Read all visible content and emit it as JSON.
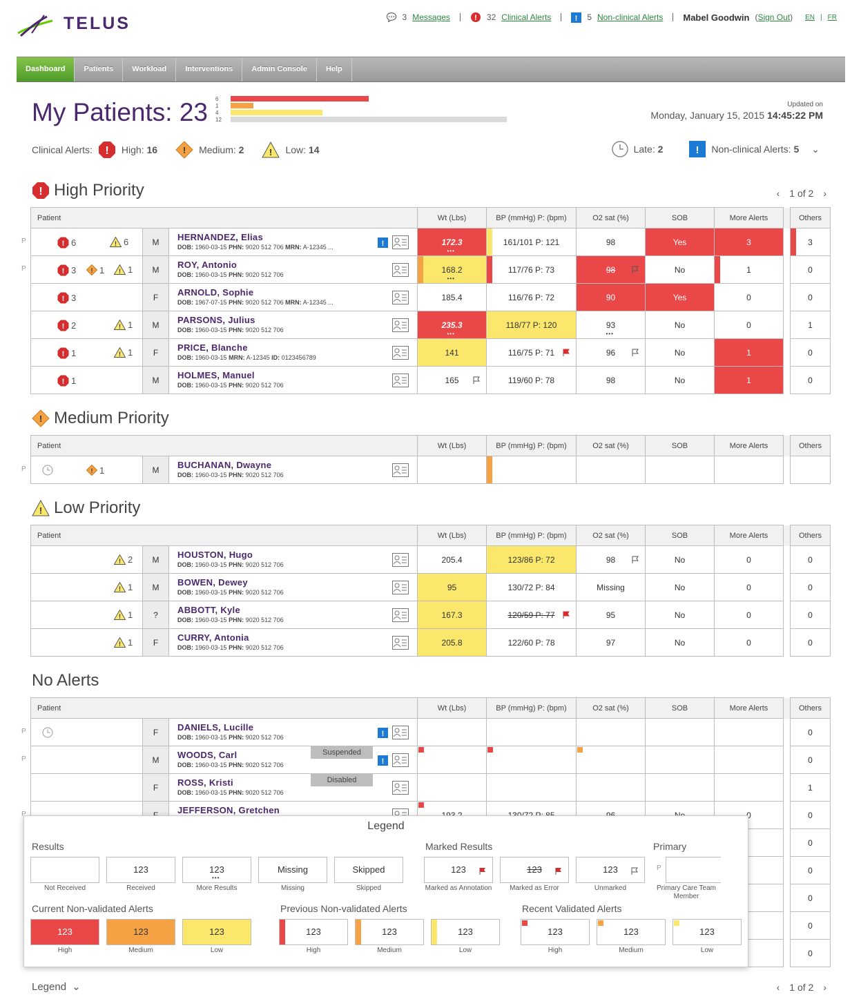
{
  "brand": {
    "name": "TELUS"
  },
  "topnav": {
    "messages_count": "3",
    "messages": "Messages",
    "clinical_count": "32",
    "clinical": "Clinical Alerts",
    "nonclinical_count": "5",
    "nonclinical": "Non-clinical Alerts",
    "user": "Mabel Goodwin",
    "signout": "Sign Out",
    "lang_en": "EN",
    "lang_fr": "FR"
  },
  "nav": [
    "Dashboard",
    "Patients",
    "Workload",
    "Interventions",
    "Admin Console",
    "Help"
  ],
  "title": "My Patients: 23",
  "summary": [
    {
      "label": "6",
      "value": 6,
      "color": "#ea4848"
    },
    {
      "label": "1",
      "value": 1,
      "color": "#f5a244"
    },
    {
      "label": "4",
      "value": 4,
      "color": "#fae76c"
    },
    {
      "label": "12",
      "value": 12,
      "color": "#d9d9d9"
    }
  ],
  "updated": {
    "label": "Updated on",
    "date": "Monday, January 15, 2015",
    "time": "14:45:22 PM"
  },
  "alerts": {
    "label": "Clinical Alerts:",
    "high_label": "High:",
    "high": "16",
    "medium_label": "Medium:",
    "medium": "2",
    "low_label": "Low:",
    "low": "14",
    "late_label": "Late:",
    "late": "2",
    "nonclinical_label": "Non-clinical Alerts:",
    "nonclinical": "5"
  },
  "headers": {
    "patient": "Patient",
    "wt": "Wt (Lbs)",
    "bp": "BP (mmHg) P: (bpm)",
    "o2": "O2 sat (%)",
    "sob": "SOB",
    "more": "More Alerts",
    "others": "Others"
  },
  "sections": {
    "high": "High Priority",
    "medium": "Medium Priority",
    "low": "Low Priority",
    "none": "No Alerts",
    "pager": "1 of 2"
  },
  "high_rows": [
    {
      "p": "P",
      "h": "6",
      "l": "6",
      "sex": "M",
      "name": "HERNANDEZ, Elias",
      "dob": "1960-03-15",
      "phn": "9020 512 706",
      "mrn": "A-12345 ...",
      "info": true,
      "wt": "172.3",
      "bp": "161/101 P: 121",
      "o2": "98",
      "sob": "Yes",
      "more": "3",
      "others": "3"
    },
    {
      "p": "P",
      "h": "3",
      "m": "1",
      "l": "1",
      "sex": "M",
      "name": "ROY, Antonio",
      "dob": "1960-03-15",
      "phn": "9020 512 706",
      "wt": "168.2",
      "bp": "117/76 P: 73",
      "o2": "98",
      "sob": "No",
      "more": "1",
      "others": "0"
    },
    {
      "h": "3",
      "sex": "F",
      "name": "ARNOLD, Sophie",
      "dob": "1967-07-15",
      "phn": "9020 512 706",
      "mrn": "A-12345 ...",
      "wt": "185.4",
      "bp": "116/76 P: 72",
      "o2": "90",
      "sob": "Yes",
      "more": "0",
      "others": "0"
    },
    {
      "h": "2",
      "l": "1",
      "sex": "M",
      "name": "PARSONS, Julius",
      "dob": "1960-03-15",
      "phn": "9020 512 706",
      "wt": "235.3",
      "bp": "118/77 P: 120",
      "o2": "93",
      "sob": "No",
      "more": "0",
      "others": "1"
    },
    {
      "h": "1",
      "l": "1",
      "sex": "F",
      "name": "PRICE, Blanche",
      "dob": "1960-03-15",
      "mrn": "A-12345",
      "id": "0123456789",
      "wt": "141",
      "bp": "116/75 P: 71",
      "o2": "96",
      "sob": "No",
      "more": "1",
      "others": "0"
    },
    {
      "h": "1",
      "sex": "M",
      "name": "HOLMES, Manuel",
      "dob": "1960-03-15",
      "phn": "9020 512 706",
      "wt": "165",
      "bp": "119/60 P: 78",
      "o2": "98",
      "sob": "No",
      "more": "1",
      "others": "0"
    }
  ],
  "medium_rows": [
    {
      "p": "P",
      "m": "1",
      "sex": "M",
      "name": "BUCHANAN, Dwayne",
      "dob": "1960-03-15",
      "phn": "9020 512 706"
    }
  ],
  "low_rows": [
    {
      "l": "2",
      "sex": "M",
      "name": "HOUSTON, Hugo",
      "dob": "1960-03-15",
      "phn": "9020 512 706",
      "wt": "205.4",
      "bp": "123/86 P: 72",
      "o2": "98",
      "sob": "No",
      "more": "0",
      "others": "0"
    },
    {
      "l": "1",
      "sex": "M",
      "name": "BOWEN, Dewey",
      "dob": "1960-03-15",
      "phn": "9020 512 706",
      "wt": "95",
      "bp": "130/72 P: 84",
      "o2": "Missing",
      "sob": "No",
      "more": "0",
      "others": "0"
    },
    {
      "l": "1",
      "sex": "?",
      "name": "ABBOTT, Kyle",
      "dob": "1960-03-15",
      "phn": "9020 512 706",
      "wt": "167.3",
      "bp": "120/59 P: 77",
      "o2": "95",
      "sob": "No",
      "more": "0",
      "others": "0"
    },
    {
      "l": "1",
      "sex": "F",
      "name": "CURRY, Antonia",
      "dob": "1960-03-15",
      "phn": "9020 512 706",
      "wt": "205.8",
      "bp": "122/60 P: 78",
      "o2": "97",
      "sob": "No",
      "more": "0",
      "others": "0"
    }
  ],
  "none_rows": [
    {
      "p": "P",
      "sex": "F",
      "name": "DANIELS, Lucille",
      "dob": "1960-03-15",
      "phn": "9020 512 706",
      "others": "0"
    },
    {
      "p": "P",
      "sex": "M",
      "name": "WOODS, Carl",
      "dob": "1960-03-15",
      "phn": "9020 512 706",
      "status": "Suspended",
      "others": "0"
    },
    {
      "sex": "F",
      "name": "ROSS, Kristi",
      "dob": "1960-03-15",
      "phn": "9020 512 706",
      "status": "Disabled",
      "others": "1"
    },
    {
      "p": "P",
      "sex": "F",
      "name": "JEFFERSON, Gretchen",
      "wt": "193.2",
      "bp": "130/72 P: 85",
      "o2": "96",
      "sob": "No",
      "more": "0",
      "others": "0"
    },
    {
      "others": "0"
    },
    {
      "others": "0"
    },
    {
      "others": "0"
    },
    {
      "others": "0"
    },
    {
      "others": "0"
    }
  ],
  "legend": {
    "title": "Legend",
    "results": "Results",
    "marked": "Marked Results",
    "primary": "Primary",
    "current": "Current Non-validated Alerts",
    "previous": "Previous Non-validated Alerts",
    "recent": "Recent Validated Alerts",
    "v123": "123",
    "missing": "Missing",
    "skipped": "Skipped",
    "not_received": "Not Received",
    "received": "Received",
    "more_results": "More Results",
    "annotation": "Marked as Annotation",
    "error": "Marked as Error",
    "unmarked": "Unmarked",
    "pct": "Primary Care Team Member",
    "p": "P",
    "high": "High",
    "medium": "Medium",
    "low": "Low",
    "toggle": "Legend"
  },
  "labels": {
    "dob": "DOB:",
    "phn": "PHN:",
    "mrn": "MRN:",
    "id": "ID:"
  }
}
